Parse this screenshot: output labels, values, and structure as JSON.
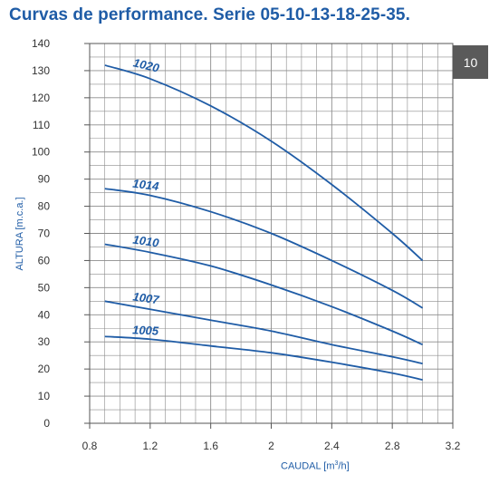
{
  "chart_data": {
    "type": "line",
    "title": "Curvas de performance. Serie 05-10-13-18-25-35.",
    "xlabel": "CAUDAL [m",
    "xlabel_sup": "3",
    "xlabel_tail": "/h]",
    "ylabel": "ALTURA [m.c.a.]",
    "xlim": [
      0.8,
      3.2
    ],
    "ylim": [
      0,
      140
    ],
    "xticks": [
      "0.8",
      "1.2",
      "1.6",
      "2",
      "2.4",
      "2.8",
      "3.2"
    ],
    "yticks": [
      "0",
      "10",
      "20",
      "30",
      "40",
      "50",
      "60",
      "70",
      "80",
      "90",
      "100",
      "110",
      "120",
      "130",
      "140"
    ],
    "grid": true,
    "colors": {
      "line": "#1f5ca6",
      "grid": "#8c8c8c",
      "text": "#333333"
    },
    "series": [
      {
        "name": "1020",
        "x": [
          0.9,
          1.2,
          1.6,
          2.0,
          2.4,
          2.8,
          3.0
        ],
        "y": [
          132,
          127,
          117,
          104,
          88,
          70,
          60
        ],
        "label_at": [
          0.9,
          1.3
        ]
      },
      {
        "name": "1014",
        "x": [
          0.9,
          1.2,
          1.6,
          2.0,
          2.4,
          2.8,
          3.0
        ],
        "y": [
          86.5,
          84,
          78,
          70,
          60,
          49,
          42.5
        ],
        "label_at": [
          0.9,
          1.3
        ]
      },
      {
        "name": "1010",
        "x": [
          0.9,
          1.2,
          1.6,
          2.0,
          2.4,
          2.8,
          3.0
        ],
        "y": [
          66,
          63,
          58,
          51,
          43,
          34,
          29
        ],
        "label_at": [
          0.9,
          1.3
        ]
      },
      {
        "name": "1007",
        "x": [
          0.9,
          1.2,
          1.6,
          2.0,
          2.4,
          2.8,
          3.0
        ],
        "y": [
          45,
          42,
          38,
          34,
          29,
          24.5,
          22
        ],
        "label_at": [
          0.95,
          1.25
        ]
      },
      {
        "name": "1005",
        "x": [
          0.9,
          1.2,
          1.6,
          2.0,
          2.4,
          2.8,
          3.0
        ],
        "y": [
          32,
          31,
          28.5,
          26,
          22.5,
          18.5,
          16
        ],
        "label_at": [
          0.95,
          1.25
        ]
      }
    ]
  },
  "page_number": "10"
}
